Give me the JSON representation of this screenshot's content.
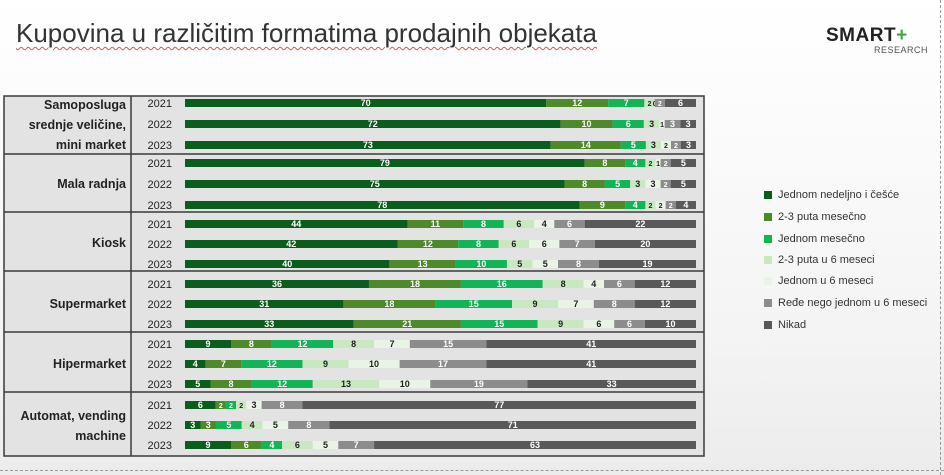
{
  "title": "Kupovina u različitim formatima prodajnih objekata",
  "logo": {
    "brand": "SMART",
    "plus": "+",
    "sub": "RESEARCH"
  },
  "colors": [
    "#0b5d1e",
    "#4e8a2a",
    "#11b457",
    "#c9e8c2",
    "#eaf4e6",
    "#8c8c8c",
    "#595959"
  ],
  "legend": [
    "Jednom nedeljno i češće",
    "2-3 puta mesečno",
    "Jednom mesečno",
    "2-3 puta u 6 meseci",
    "Jednom u 6 meseci",
    "Ređe nego jednom u 6 meseci",
    "Nikad"
  ],
  "chart_data": {
    "type": "bar",
    "stacked": true,
    "orientation": "horizontal",
    "xlim": [
      0,
      100
    ],
    "legend_position": "right",
    "series_names": [
      "Jednom nedeljno i češće",
      "2-3 puta mesečno",
      "Jednom mesečno",
      "2-3 puta u 6 meseci",
      "Jednom u 6 meseci",
      "Ređe nego jednom u 6 meseci",
      "Nikad"
    ],
    "groups": [
      {
        "label": "Samoposluga srednje veličine, mini market",
        "rows": [
          {
            "year": "2021",
            "values": [
              70,
              12,
              7,
              2,
              0,
              2,
              6
            ]
          },
          {
            "year": "2022",
            "values": [
              72,
              10,
              6,
              3,
              1,
              3,
              3
            ]
          },
          {
            "year": "2023",
            "values": [
              73,
              14,
              5,
              3,
              2,
              2,
              3
            ]
          }
        ]
      },
      {
        "label": "Mala radnja",
        "rows": [
          {
            "year": "2021",
            "values": [
              79,
              8,
              4,
              2,
              1,
              2,
              5
            ]
          },
          {
            "year": "2022",
            "values": [
              75,
              8,
              5,
              3,
              3,
              2,
              5
            ]
          },
          {
            "year": "2023",
            "values": [
              78,
              9,
              4,
              2,
              2,
              2,
              4
            ]
          }
        ]
      },
      {
        "label": "Kiosk",
        "rows": [
          {
            "year": "2021",
            "values": [
              44,
              11,
              8,
              6,
              4,
              6,
              22
            ]
          },
          {
            "year": "2022",
            "values": [
              42,
              12,
              8,
              6,
              6,
              7,
              20
            ]
          },
          {
            "year": "2023",
            "values": [
              40,
              13,
              10,
              5,
              5,
              8,
              19
            ]
          }
        ]
      },
      {
        "label": "Supermarket",
        "rows": [
          {
            "year": "2021",
            "values": [
              36,
              18,
              16,
              8,
              4,
              6,
              12
            ]
          },
          {
            "year": "2022",
            "values": [
              31,
              18,
              15,
              9,
              7,
              8,
              12
            ]
          },
          {
            "year": "2023",
            "values": [
              33,
              21,
              15,
              9,
              6,
              6,
              10
            ]
          }
        ]
      },
      {
        "label": "Hipermarket",
        "rows": [
          {
            "year": "2021",
            "values": [
              9,
              8,
              12,
              8,
              7,
              15,
              41
            ]
          },
          {
            "year": "2022",
            "values": [
              4,
              7,
              12,
              9,
              10,
              17,
              41
            ]
          },
          {
            "year": "2023",
            "values": [
              5,
              8,
              12,
              13,
              10,
              19,
              33
            ]
          }
        ]
      },
      {
        "label": "Automat, vending machine",
        "rows": [
          {
            "year": "2021",
            "values": [
              6,
              2,
              2,
              2,
              3,
              8,
              77
            ]
          },
          {
            "year": "2022",
            "values": [
              3,
              3,
              5,
              4,
              5,
              8,
              71
            ]
          },
          {
            "year": "2023",
            "values": [
              9,
              6,
              4,
              6,
              5,
              7,
              63
            ]
          }
        ]
      }
    ]
  }
}
